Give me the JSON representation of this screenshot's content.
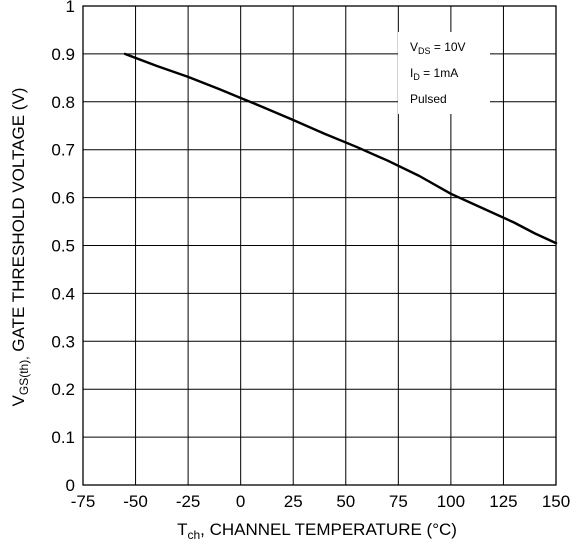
{
  "chart_data": {
    "type": "line",
    "xlabel": {
      "main": "T",
      "sub": "ch",
      "rest": ", CHANNEL TEMPERATURE (°C)"
    },
    "ylabel": {
      "main": "V",
      "sub": "GS(th),",
      "rest": " GATE THRESHOLD VOLTAGE (V)"
    },
    "xlim": [
      -75,
      150
    ],
    "ylim": [
      0,
      1
    ],
    "xticks": [
      -75,
      -50,
      -25,
      0,
      25,
      50,
      75,
      100,
      125,
      150
    ],
    "yticks": [
      0,
      0.1,
      0.2,
      0.3,
      0.4,
      0.5,
      0.6,
      0.7,
      0.8,
      0.9,
      1
    ],
    "ytick_labels": [
      "0",
      "0.1",
      "0.2",
      "0.3",
      "0.4",
      "0.5",
      "0.6",
      "0.7",
      "0.8",
      "0.9",
      "1"
    ],
    "grid": true,
    "series": [
      {
        "x": [
          -55,
          -40,
          -25,
          -10,
          0,
          10,
          25,
          40,
          55,
          70,
          85,
          100,
          115,
          130,
          140,
          150
        ],
        "y": [
          0.9,
          0.875,
          0.852,
          0.826,
          0.808,
          0.79,
          0.762,
          0.733,
          0.706,
          0.677,
          0.645,
          0.608,
          0.578,
          0.548,
          0.525,
          0.505
        ]
      }
    ],
    "annotation": {
      "line1": {
        "main": "V",
        "sub": "DS",
        "rest": " = 10V"
      },
      "line2": {
        "main": "I",
        "sub": "D",
        "rest": " = 1mA"
      },
      "line3": "Pulsed"
    }
  }
}
